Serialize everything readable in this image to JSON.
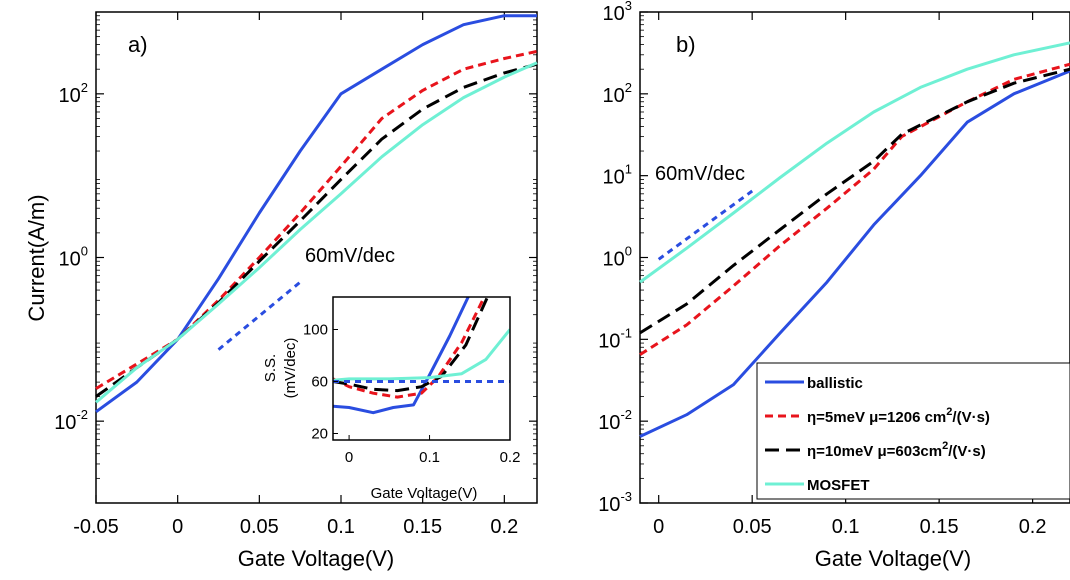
{
  "colors": {
    "ballistic": "#2a4de0",
    "eta5": "#e8141c",
    "eta10": "#000000",
    "mosfet": "#6ff0d4",
    "ref": "#2a4de0"
  },
  "chart_data": [
    {
      "id": "a",
      "type": "line",
      "panel_label": "a)",
      "xlabel": "Gate Voltage(V)",
      "ylabel": "Current(A/m)",
      "yscale": "log",
      "xlim": [
        -0.05,
        0.22
      ],
      "ylim_exp": [
        -3,
        3
      ],
      "xticks": [
        -0.05,
        0,
        0.05,
        0.1,
        0.15,
        0.2
      ],
      "xtick_labels": [
        "-0.05",
        "0",
        "0.05",
        "0.1",
        "0.15",
        "0.2"
      ],
      "yticks_exp": [
        -2,
        0,
        2
      ],
      "ytick_labels": [
        {
          "base": "10",
          "exp": "-2"
        },
        {
          "base": "10",
          "exp": "0"
        },
        {
          "base": "10",
          "exp": "2"
        }
      ],
      "annotation": "60mV/dec",
      "series": [
        {
          "key": "ballistic",
          "style": "solid",
          "x": [
            -0.05,
            -0.025,
            0,
            0.025,
            0.05,
            0.075,
            0.1,
            0.125,
            0.15,
            0.175,
            0.2,
            0.22
          ],
          "y": [
            0.013,
            0.03,
            0.1,
            0.55,
            3.5,
            20,
            100,
            200,
            400,
            700,
            900,
            900
          ]
        },
        {
          "key": "eta5",
          "style": "dashed",
          "x": [
            -0.05,
            -0.025,
            0,
            0.025,
            0.05,
            0.075,
            0.1,
            0.125,
            0.15,
            0.175,
            0.2,
            0.22
          ],
          "y": [
            0.025,
            0.05,
            0.1,
            0.3,
            1.0,
            3.5,
            13,
            50,
            110,
            200,
            270,
            330
          ]
        },
        {
          "key": "eta10",
          "style": "longdash",
          "x": [
            -0.05,
            -0.025,
            0,
            0.025,
            0.05,
            0.075,
            0.1,
            0.125,
            0.15,
            0.175,
            0.2,
            0.22
          ],
          "y": [
            0.02,
            0.045,
            0.1,
            0.28,
            0.9,
            2.8,
            9,
            28,
            65,
            120,
            180,
            230
          ]
        },
        {
          "key": "mosfet",
          "style": "solid",
          "x": [
            -0.05,
            -0.025,
            0,
            0.025,
            0.05,
            0.075,
            0.1,
            0.125,
            0.15,
            0.175,
            0.2,
            0.22
          ],
          "y": [
            0.017,
            0.045,
            0.1,
            0.27,
            0.75,
            2.2,
            6,
            17,
            42,
            90,
            160,
            240
          ]
        },
        {
          "key": "ref",
          "style": "dotted",
          "x": [
            0.025,
            0.075
          ],
          "y": [
            0.075,
            0.5
          ]
        }
      ],
      "inset": {
        "xlabel": "Gate Voltage(V)",
        "ylabel_line1": "S.S.",
        "ylabel_line2": "(mV/dec)",
        "xlim": [
          -0.02,
          0.2
        ],
        "ylim": [
          15,
          125
        ],
        "xticks": [
          0,
          0.1,
          0.2
        ],
        "xtick_labels": [
          "0",
          "0.1",
          "0.2"
        ],
        "yticks": [
          20,
          60,
          100
        ],
        "ytick_labels": [
          "20",
          "60",
          "100"
        ],
        "series": [
          {
            "key": "ballistic",
            "style": "solid",
            "x": [
              -0.02,
              0.0,
              0.03,
              0.055,
              0.08,
              0.1,
              0.125,
              0.148
            ],
            "y": [
              41,
              40,
              36,
              40,
              42,
              65,
              95,
              125
            ]
          },
          {
            "key": "eta5",
            "style": "dashed",
            "x": [
              -0.02,
              0.0,
              0.03,
              0.06,
              0.09,
              0.11,
              0.14,
              0.168
            ],
            "y": [
              62,
              56,
              51,
              48,
              51,
              63,
              90,
              125
            ]
          },
          {
            "key": "eta10",
            "style": "longdash",
            "x": [
              -0.02,
              0.0,
              0.03,
              0.06,
              0.09,
              0.115,
              0.145,
              0.172
            ],
            "y": [
              60,
              58,
              54,
              53,
              56,
              64,
              88,
              125
            ]
          },
          {
            "key": "mosfet",
            "style": "solid",
            "x": [
              -0.02,
              0.0,
              0.05,
              0.1,
              0.14,
              0.17,
              0.2
            ],
            "y": [
              61,
              62,
              62,
              63,
              66,
              77,
              100
            ]
          },
          {
            "key": "ref",
            "style": "dotted",
            "x": [
              -0.02,
              0.2
            ],
            "y": [
              60,
              60
            ]
          }
        ]
      }
    },
    {
      "id": "b",
      "type": "line",
      "panel_label": "b)",
      "xlabel": "Gate Voltage(V)",
      "ylabel": "",
      "yscale": "log",
      "xlim": [
        -0.01,
        0.22
      ],
      "ylim_exp": [
        -3,
        3
      ],
      "xticks": [
        0,
        0.05,
        0.1,
        0.15,
        0.2
      ],
      "xtick_labels": [
        "0",
        "0.05",
        "0.1",
        "0.15",
        "0.2"
      ],
      "yticks_exp": [
        -3,
        -2,
        -1,
        0,
        1,
        2,
        3
      ],
      "ytick_labels": [
        {
          "base": "10",
          "exp": "-3"
        },
        {
          "base": "10",
          "exp": "-2"
        },
        {
          "base": "10",
          "exp": "-1"
        },
        {
          "base": "10",
          "exp": "0"
        },
        {
          "base": "10",
          "exp": "1"
        },
        {
          "base": "10",
          "exp": "2"
        },
        {
          "base": "10",
          "exp": "3"
        }
      ],
      "annotation": "60mV/dec",
      "legend": [
        {
          "key": "ballistic",
          "style": "solid",
          "label": "ballistic",
          "sup": "",
          "tail": ""
        },
        {
          "key": "eta5",
          "style": "dashed",
          "label": "η=5meV μ=1206 cm",
          "sup": "2",
          "tail": "/(V·s)"
        },
        {
          "key": "eta10",
          "style": "longdash",
          "label": "η=10meV μ=603cm",
          "sup": "2",
          "tail": "/(V·s)"
        },
        {
          "key": "mosfet",
          "style": "solid",
          "label": "MOSFET",
          "sup": "",
          "tail": ""
        }
      ],
      "series": [
        {
          "key": "ballistic",
          "style": "solid",
          "x": [
            -0.01,
            0.015,
            0.04,
            0.065,
            0.09,
            0.115,
            0.14,
            0.165,
            0.19,
            0.22
          ],
          "y": [
            0.0065,
            0.012,
            0.028,
            0.12,
            0.5,
            2.5,
            10,
            45,
            100,
            190
          ]
        },
        {
          "key": "eta5",
          "style": "dashed",
          "x": [
            -0.01,
            0.015,
            0.04,
            0.065,
            0.09,
            0.115,
            0.13,
            0.165,
            0.19,
            0.22
          ],
          "y": [
            0.065,
            0.15,
            0.45,
            1.4,
            4.0,
            12,
            30,
            80,
            150,
            230
          ]
        },
        {
          "key": "eta10",
          "style": "longdash",
          "x": [
            -0.01,
            0.015,
            0.04,
            0.065,
            0.09,
            0.115,
            0.13,
            0.165,
            0.19,
            0.22
          ],
          "y": [
            0.12,
            0.27,
            0.8,
            2.2,
            6.0,
            15,
            32,
            80,
            135,
            200
          ]
        },
        {
          "key": "mosfet",
          "style": "solid",
          "x": [
            -0.01,
            0.015,
            0.04,
            0.065,
            0.09,
            0.115,
            0.14,
            0.165,
            0.19,
            0.22
          ],
          "y": [
            0.5,
            1.3,
            3.5,
            9.5,
            25,
            60,
            120,
            200,
            300,
            420
          ]
        },
        {
          "key": "ref",
          "style": "dotted",
          "x": [
            0.0,
            0.05
          ],
          "y": [
            0.95,
            6.5
          ]
        }
      ]
    }
  ]
}
